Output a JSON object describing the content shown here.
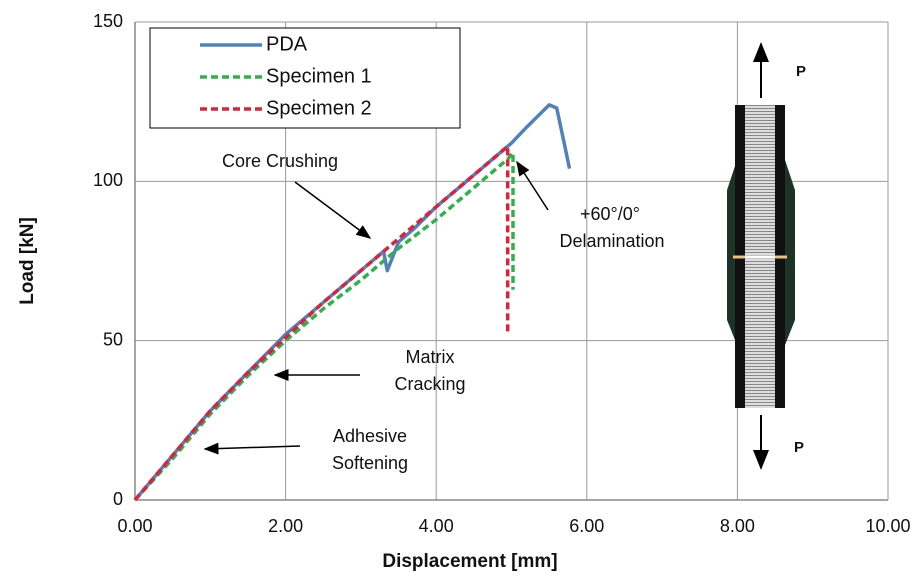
{
  "chart_data": {
    "type": "line",
    "xlabel": "Displacement [mm]",
    "ylabel": "Load [kN]",
    "xlim": [
      0,
      10
    ],
    "ylim": [
      0,
      150
    ],
    "xticks": [
      {
        "value": 0,
        "label": "0.00"
      },
      {
        "value": 2,
        "label": "2.00"
      },
      {
        "value": 4,
        "label": "4.00"
      },
      {
        "value": 6,
        "label": "6.00"
      },
      {
        "value": 8,
        "label": "8.00"
      },
      {
        "value": 10,
        "label": "10.00"
      }
    ],
    "yticks": [
      0,
      50,
      100,
      150
    ],
    "grid": true,
    "legend": "upper left",
    "series": [
      {
        "name": "PDA",
        "color": "#4f81bd",
        "style": "solid",
        "x": [
          0,
          0.5,
          1,
          1.5,
          2,
          2.5,
          3,
          3.2,
          3.3,
          3.35,
          3.5,
          3.7,
          4,
          4.5,
          5,
          5.2,
          5.5,
          5.6,
          5.7,
          5.77
        ],
        "values": [
          0,
          14,
          28,
          40,
          52,
          62,
          72,
          76,
          78,
          72,
          81,
          85,
          92,
          102,
          112,
          117,
          124,
          123,
          112,
          104
        ]
      },
      {
        "name": "Specimen 1",
        "color": "#2db34a",
        "style": "dashed",
        "x": [
          0,
          0.5,
          1,
          1.5,
          2,
          2.5,
          3,
          3.5,
          4,
          4.5,
          4.95,
          5.02,
          5.02
        ],
        "values": [
          0,
          13,
          27,
          39,
          50,
          60,
          69,
          79,
          88,
          98,
          107,
          109,
          66
        ]
      },
      {
        "name": "Specimen 2",
        "color": "#e0203a",
        "style": "dashed",
        "x": [
          0,
          0.5,
          1,
          1.5,
          2,
          2.5,
          3,
          3.5,
          4,
          4.5,
          4.9,
          4.95,
          4.95
        ],
        "values": [
          0,
          14,
          28,
          40,
          51,
          62,
          72,
          82,
          92,
          102,
          110,
          111,
          52
        ]
      }
    ],
    "annotations": [
      {
        "lines": [
          "Core Crushing"
        ]
      },
      {
        "lines": [
          "+60°/0°",
          "Delamination"
        ]
      },
      {
        "lines": [
          "Matrix",
          "Cracking"
        ]
      },
      {
        "lines": [
          "Adhesive",
          "Softening"
        ]
      }
    ],
    "load_labels": [
      "P",
      "P"
    ]
  }
}
